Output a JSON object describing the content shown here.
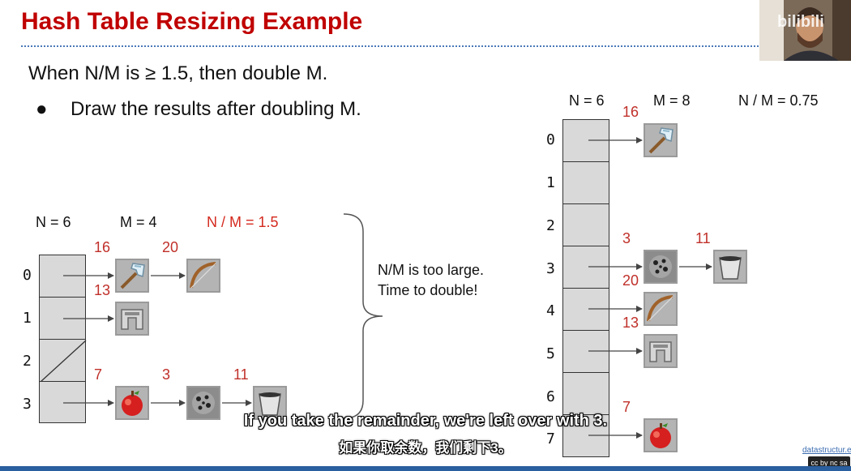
{
  "slide": {
    "title": "Hash Table Resizing Example",
    "rule": "When N/M is ≥ 1.5, then double M.",
    "bullet": "Draw the results after doubling M."
  },
  "left_table": {
    "n_label": "N = 6",
    "m_label": "M = 4",
    "ratio_label": "N / M = 1.5",
    "rows": [
      {
        "index": "0",
        "chain": [
          {
            "key": "16",
            "item": "iron-axe"
          },
          {
            "key": "20",
            "item": "bow"
          }
        ]
      },
      {
        "index": "1",
        "chain": [
          {
            "key": "13",
            "item": "iron-helmet"
          }
        ]
      },
      {
        "index": "2",
        "chain": []
      },
      {
        "index": "3",
        "chain": [
          {
            "key": "7",
            "item": "apple"
          },
          {
            "key": "3",
            "item": "coal-ore"
          },
          {
            "key": "11",
            "item": "bucket"
          }
        ]
      }
    ]
  },
  "note": {
    "line1": "N/M is too large.",
    "line2": "Time to double!"
  },
  "right_table": {
    "n_label": "N = 6",
    "m_label": "M = 8",
    "ratio_label": "N / M = 0.75",
    "rows": [
      {
        "index": "0",
        "chain": [
          {
            "key": "16",
            "item": "iron-axe"
          }
        ]
      },
      {
        "index": "1",
        "chain": []
      },
      {
        "index": "2",
        "chain": []
      },
      {
        "index": "3",
        "chain": [
          {
            "key": "3",
            "item": "coal-ore"
          },
          {
            "key": "11",
            "item": "bucket"
          }
        ]
      },
      {
        "index": "4",
        "chain": [
          {
            "key": "20",
            "item": "bow"
          }
        ]
      },
      {
        "index": "5",
        "chain": [
          {
            "key": "13",
            "item": "iron-helmet"
          }
        ]
      },
      {
        "index": "6",
        "chain": []
      },
      {
        "index": "7",
        "chain": [
          {
            "key": "7",
            "item": "apple"
          }
        ]
      }
    ]
  },
  "subtitles": {
    "english": "If you take the remainder, we're left over with 3.",
    "chinese": "如果你取余数，我们剩下3。"
  },
  "overlay": {
    "site_credit": "datastructur.es",
    "license_badge": "cc by nc sa",
    "watermark": "bilibili"
  },
  "colors": {
    "title_red": "#c00000",
    "ratio_red": "#d42a1e",
    "key_red": "#c0302a",
    "cell_gray": "#d9d9d9",
    "divider_blue": "#4a78b8"
  }
}
